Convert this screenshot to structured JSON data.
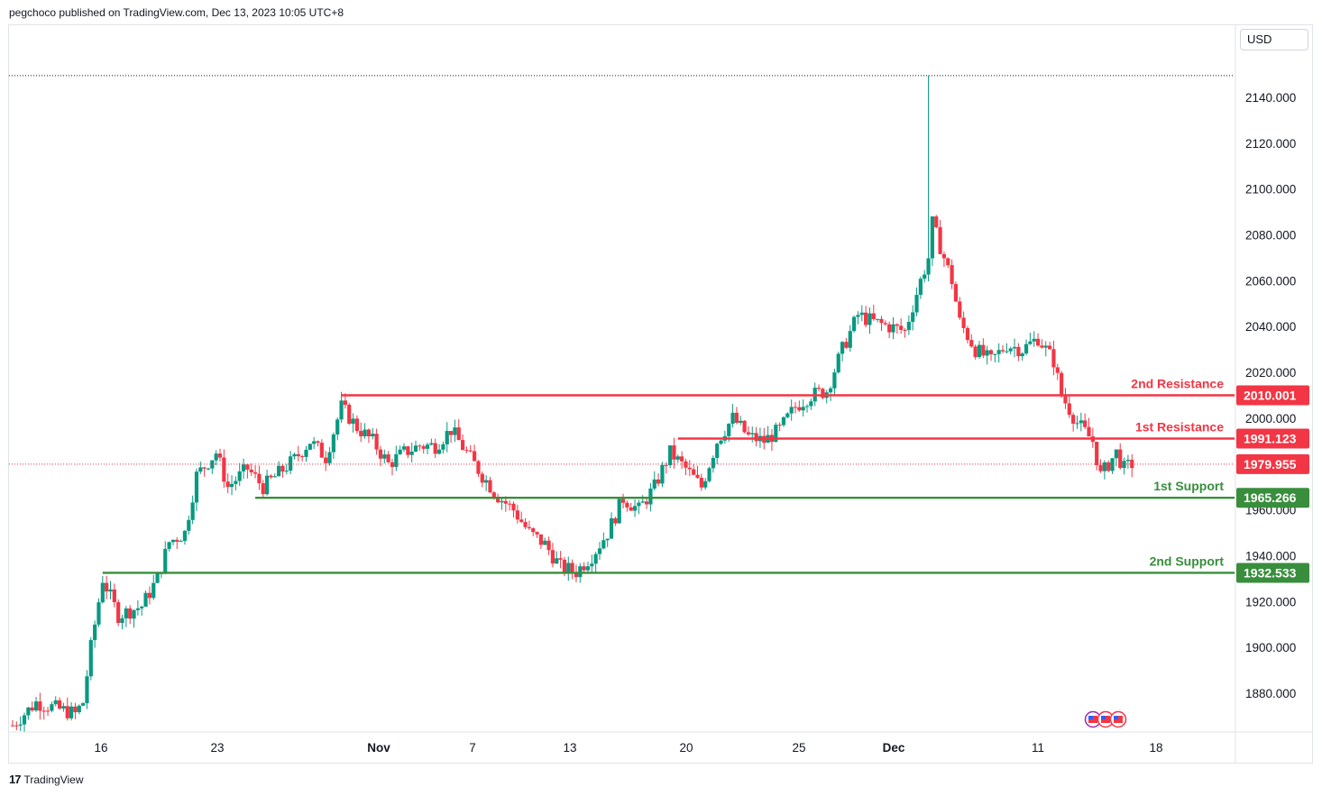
{
  "header": {
    "text": "pegchoco published on TradingView.com, Dec 13, 2023 10:05 UTC+8"
  },
  "currency": "USD",
  "footer": {
    "brand": "TradingView",
    "logo_icon": "tv-logo-icon"
  },
  "colors": {
    "up": "#089981",
    "down": "#f23645",
    "resistance": "#f23645",
    "support": "#388e3c",
    "last_price": "#f23645"
  },
  "chart_data": {
    "type": "candlestick",
    "ylim": [
      1860,
      2160
    ],
    "y_ticks": [
      1880,
      1900,
      1920,
      1940,
      1960,
      2000,
      2020,
      2040,
      2060,
      2080,
      2100,
      2120,
      2140
    ],
    "y_tick_labels": [
      "1880.000",
      "1900.000",
      "1920.000",
      "1940.000",
      "1960.000",
      "2000.000",
      "2020.000",
      "2040.000",
      "2060.000",
      "2080.000",
      "2100.000",
      "2120.000",
      "2140.000"
    ],
    "x_labels": [
      {
        "label": "16",
        "bold": false
      },
      {
        "label": "23",
        "bold": false
      },
      {
        "label": "Nov",
        "bold": true
      },
      {
        "label": "7",
        "bold": false
      },
      {
        "label": "13",
        "bold": false
      },
      {
        "label": "20",
        "bold": false
      },
      {
        "label": "25",
        "bold": false
      },
      {
        "label": "Dec",
        "bold": true
      },
      {
        "label": "11",
        "bold": false
      },
      {
        "label": "18",
        "bold": false
      }
    ],
    "levels": [
      {
        "name": "2nd Resistance",
        "value": 2010.001,
        "value_label": "2010.001",
        "kind": "resistance",
        "start_candle": 84
      },
      {
        "name": "1st Resistance",
        "value": 1991.123,
        "value_label": "1991.123",
        "kind": "resistance",
        "start_candle": 170
      },
      {
        "name": "1st Support",
        "value": 1965.266,
        "value_label": "1965.266",
        "kind": "support",
        "start_candle": 62
      },
      {
        "name": "2nd Support",
        "value": 1932.533,
        "value_label": "1932.533",
        "kind": "support",
        "start_candle": 23
      }
    ],
    "last_price": {
      "value": 1979.955,
      "label": "1979.955"
    },
    "high_marker": 2149.5,
    "waypoints": [
      [
        0,
        1866
      ],
      [
        6,
        1876
      ],
      [
        10,
        1874
      ],
      [
        16,
        1871
      ],
      [
        18,
        1876
      ],
      [
        20,
        1900
      ],
      [
        23,
        1930
      ],
      [
        27,
        1914
      ],
      [
        33,
        1918
      ],
      [
        37,
        1930
      ],
      [
        40,
        1946
      ],
      [
        44,
        1950
      ],
      [
        47,
        1975
      ],
      [
        52,
        1985
      ],
      [
        55,
        1970
      ],
      [
        60,
        1978
      ],
      [
        64,
        1970
      ],
      [
        68,
        1976
      ],
      [
        72,
        1982
      ],
      [
        76,
        1990
      ],
      [
        80,
        1983
      ],
      [
        84,
        2005
      ],
      [
        88,
        1996
      ],
      [
        92,
        1990
      ],
      [
        96,
        1980
      ],
      [
        100,
        1985
      ],
      [
        104,
        1988
      ],
      [
        108,
        1988
      ],
      [
        112,
        1995
      ],
      [
        116,
        1985
      ],
      [
        120,
        1975
      ],
      [
        124,
        1966
      ],
      [
        128,
        1960
      ],
      [
        132,
        1950
      ],
      [
        136,
        1945
      ],
      [
        140,
        1935
      ],
      [
        144,
        1933
      ],
      [
        148,
        1940
      ],
      [
        152,
        1950
      ],
      [
        156,
        1965
      ],
      [
        160,
        1960
      ],
      [
        164,
        1970
      ],
      [
        168,
        1985
      ],
      [
        172,
        1978
      ],
      [
        176,
        1970
      ],
      [
        180,
        1990
      ],
      [
        184,
        2000
      ],
      [
        188,
        1992
      ],
      [
        192,
        1990
      ],
      [
        196,
        1995
      ],
      [
        200,
        2005
      ],
      [
        204,
        2010
      ],
      [
        208,
        2012
      ],
      [
        212,
        2030
      ],
      [
        216,
        2045
      ],
      [
        220,
        2042
      ],
      [
        224,
        2040
      ],
      [
        228,
        2038
      ],
      [
        232,
        2060
      ],
      [
        234,
        2070
      ],
      [
        235,
        2085
      ],
      [
        238,
        2070
      ],
      [
        240,
        2060
      ],
      [
        242,
        2042
      ],
      [
        246,
        2030
      ],
      [
        250,
        2025
      ],
      [
        254,
        2032
      ],
      [
        258,
        2030
      ],
      [
        262,
        2035
      ],
      [
        266,
        2025
      ],
      [
        268,
        2010
      ],
      [
        272,
        1998
      ],
      [
        276,
        1990
      ],
      [
        278,
        1975
      ],
      [
        282,
        1985
      ],
      [
        284,
        1978
      ],
      [
        286,
        1980
      ]
    ]
  }
}
